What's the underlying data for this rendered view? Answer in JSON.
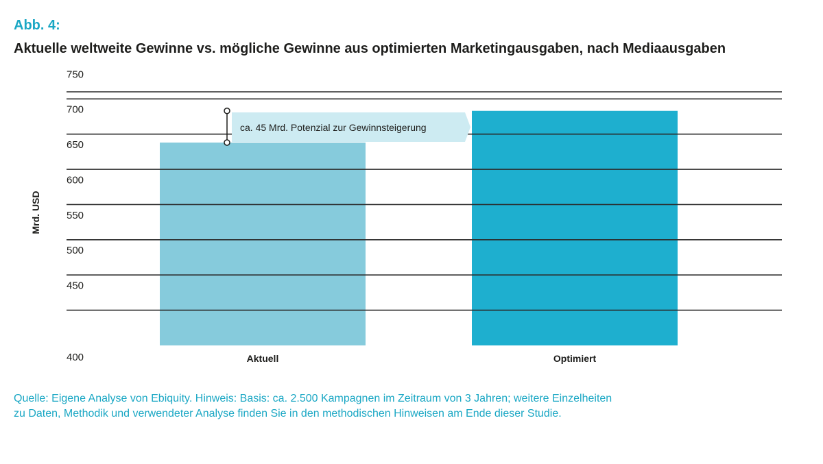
{
  "figure_label": "Abb. 4:",
  "title": "Aktuelle weltweite Gewinne vs. mögliche Gewinne aus optimierten Marketingausgaben, nach Mediaausgaben",
  "source_note": {
    "line1": "Quelle: Eigene Analyse von Ebiquity. Hinweis: Basis: ca. 2.500 Kampagnen im Zeitraum von 3 Jahren; weitere Einzelheiten",
    "line2": "zu Daten, Methodik und verwendeter Analyse finden Sie in den methodischen Hinweisen am Ende dieser Studie."
  },
  "colors": {
    "bar_current": "#86cbdc",
    "bar_optimized": "#1eafcf",
    "gridline": "#2b2b2b",
    "callout_bg": "#cdebf2",
    "accent": "#1aa7c4"
  },
  "chart_data": {
    "type": "bar",
    "categories": [
      "Aktuell",
      "Optimiert"
    ],
    "values": [
      688,
      733
    ],
    "ylabel": "Mrd. USD",
    "ylim": [
      400,
      760
    ],
    "yticks": [
      400,
      450,
      500,
      550,
      600,
      650,
      700,
      750
    ],
    "grid": true,
    "annotation": {
      "text": "ca. 45 Mrd. Potenzial zur Gewinnsteigerung",
      "from": 688,
      "to": 733
    }
  }
}
